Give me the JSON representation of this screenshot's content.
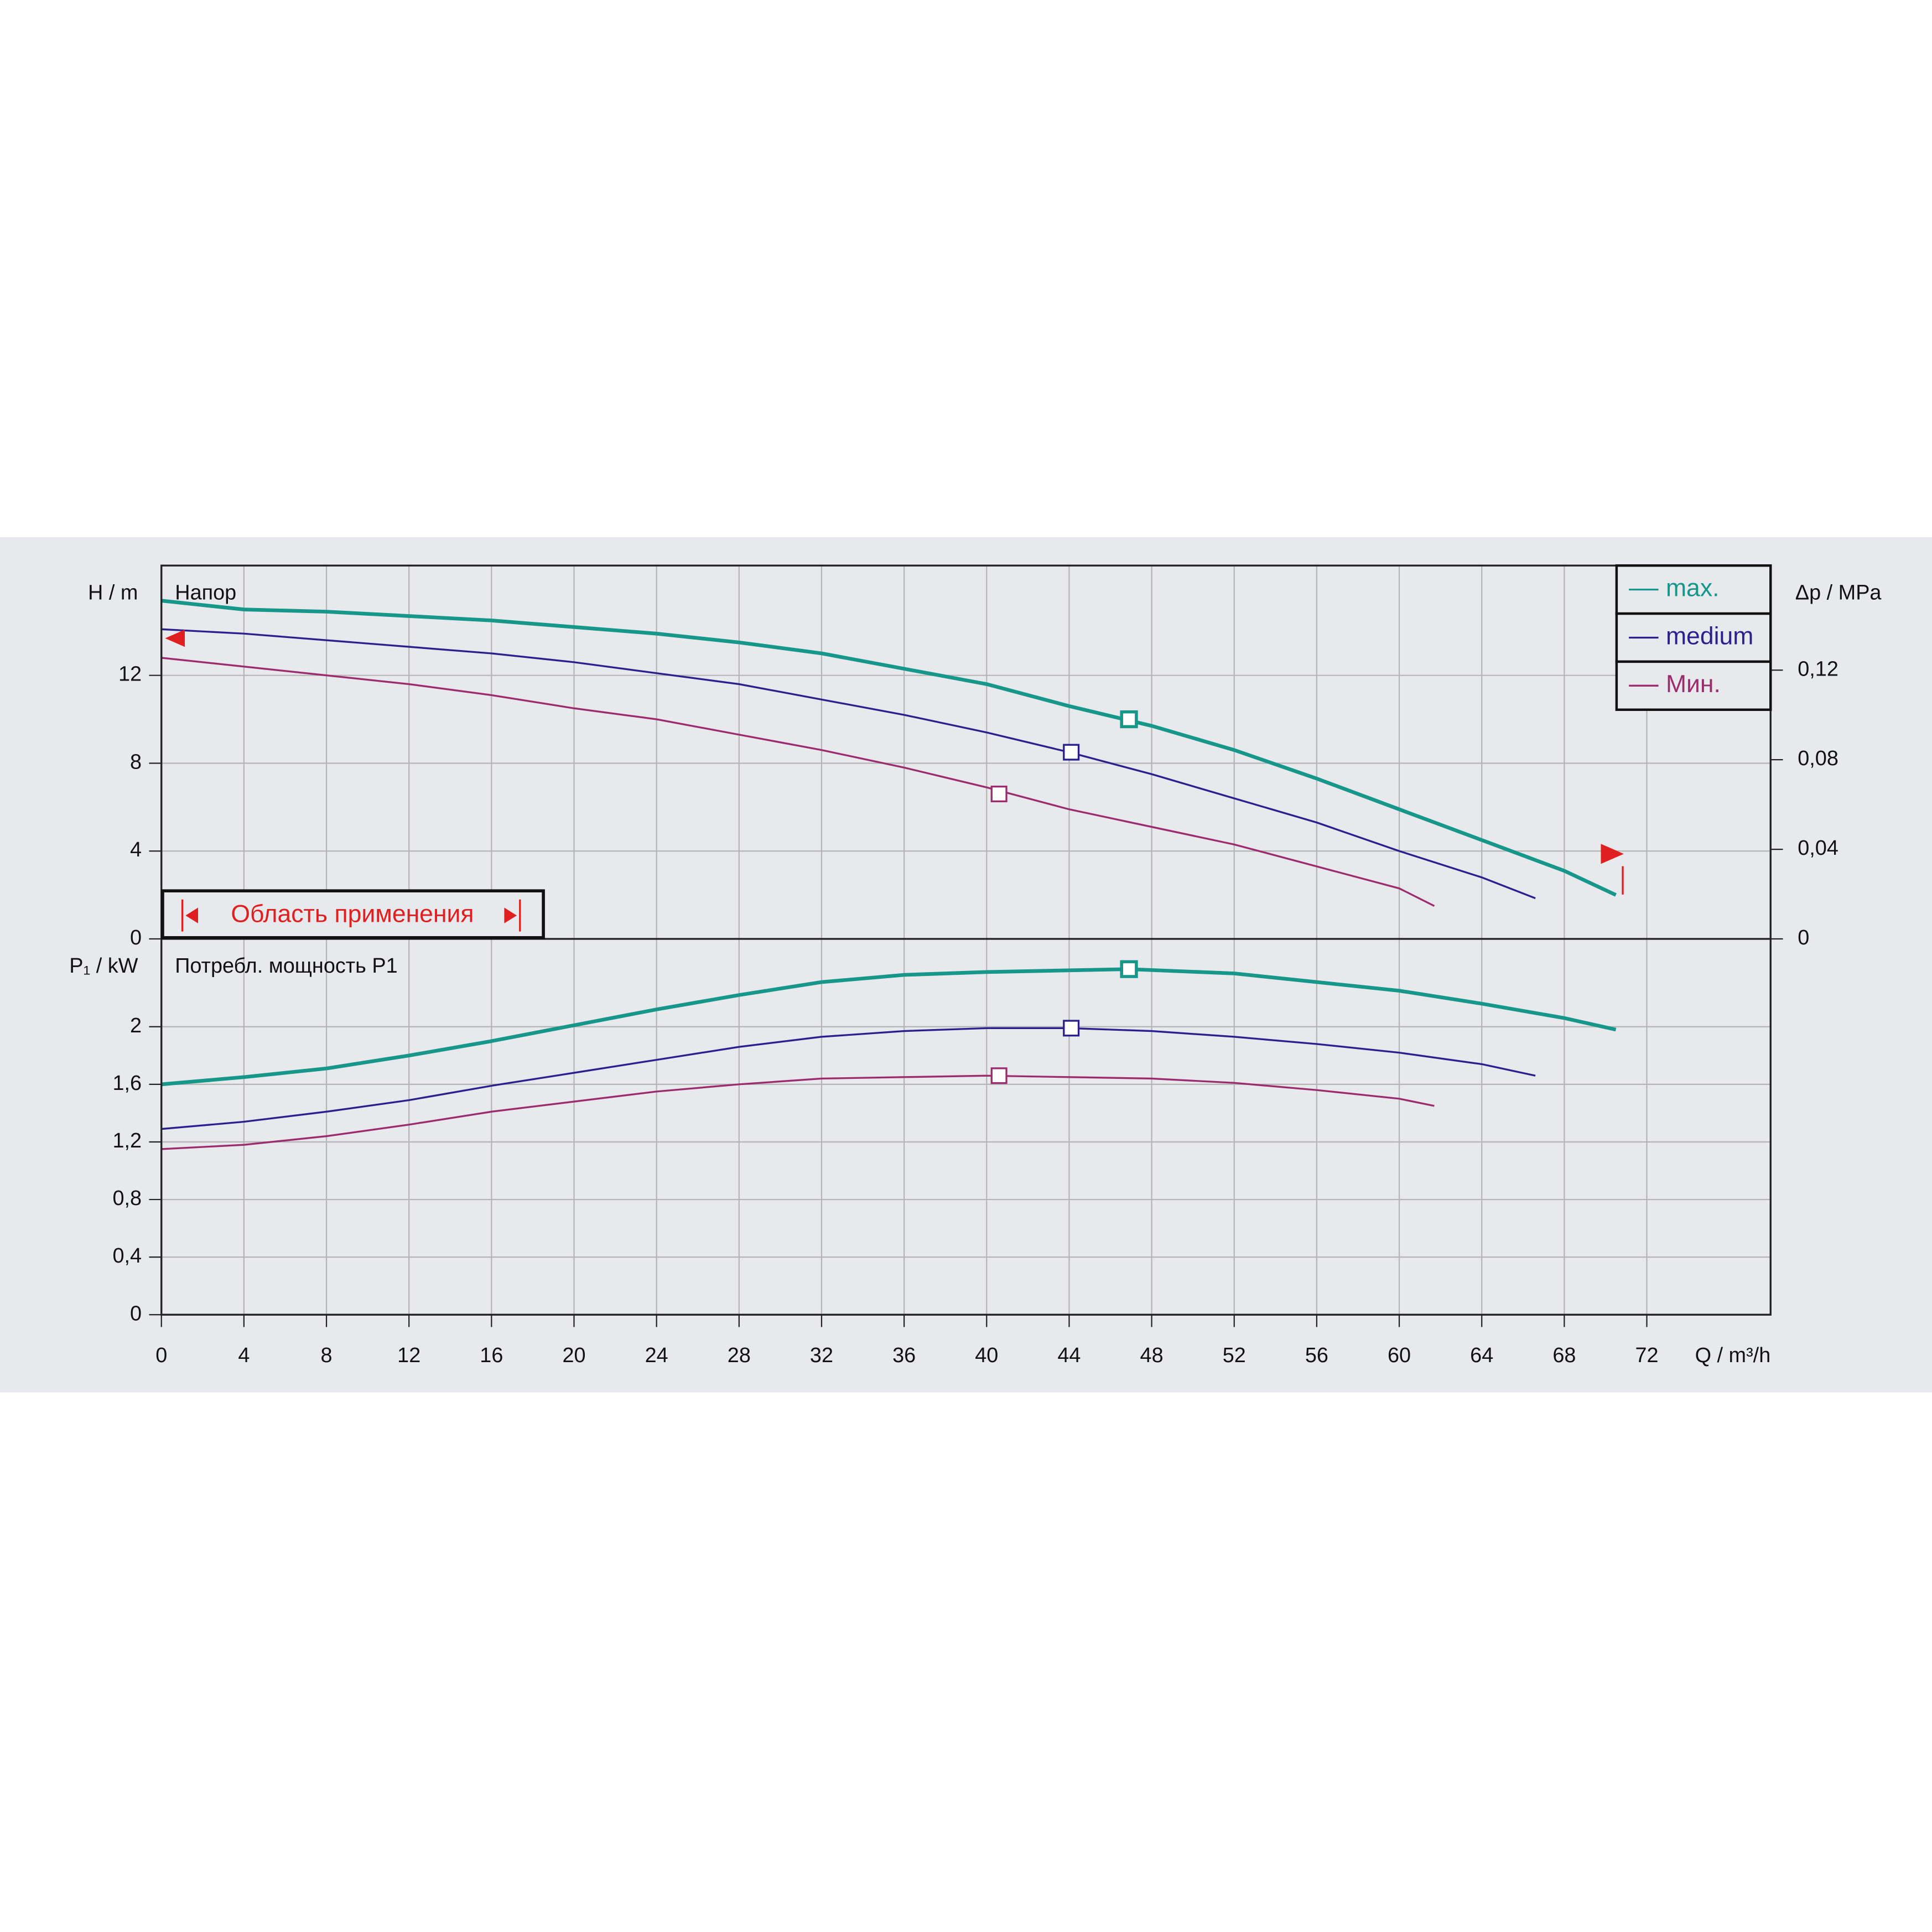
{
  "chart_data": [
    {
      "type": "line",
      "title": "Напор",
      "ylabel": "H / m",
      "y2label": "Δp / MPa",
      "application_range": "Область применения",
      "xlim": [
        0,
        78
      ],
      "ylim": [
        0,
        17
      ],
      "yticks": [
        0,
        4,
        8,
        12
      ],
      "y2lim": [
        0,
        0.1667
      ],
      "y2ticks": [
        0,
        {
          "value": 0.04,
          "label": "0,04"
        },
        {
          "value": 0.08,
          "label": "0,08"
        },
        {
          "value": 0.12,
          "label": "0,12"
        }
      ],
      "grid": true,
      "legend": "top-right",
      "series": [
        {
          "name": "max.",
          "color": "#17978a",
          "x": [
            0,
            4,
            8,
            12,
            16,
            20,
            24,
            28,
            32,
            36,
            40,
            44,
            48,
            52,
            56,
            60,
            64,
            68,
            70.5
          ],
          "values": [
            15.4,
            15.0,
            14.9,
            14.7,
            14.5,
            14.2,
            13.9,
            13.5,
            13.0,
            12.3,
            11.6,
            10.6,
            9.7,
            8.6,
            7.3,
            5.9,
            4.5,
            3.1,
            2.0
          ],
          "point": {
            "x": 46.9,
            "y": 10.0
          }
        },
        {
          "name": "medium",
          "color": "#2e1f8f",
          "x": [
            0,
            4,
            8,
            12,
            16,
            20,
            24,
            28,
            32,
            36,
            40,
            44,
            48,
            52,
            56,
            60,
            64,
            66.6
          ],
          "values": [
            14.1,
            13.9,
            13.6,
            13.3,
            13.0,
            12.6,
            12.1,
            11.6,
            10.9,
            10.2,
            9.4,
            8.5,
            7.5,
            6.4,
            5.3,
            4.0,
            2.8,
            1.85
          ],
          "point": {
            "x": 44.1,
            "y": 8.5
          }
        },
        {
          "name": "Мин.",
          "color": "#9b2d6e",
          "x": [
            0,
            4,
            8,
            12,
            16,
            20,
            24,
            28,
            32,
            36,
            40,
            44,
            48,
            52,
            56,
            60,
            61.7
          ],
          "values": [
            12.8,
            12.4,
            12.0,
            11.6,
            11.1,
            10.5,
            10.0,
            9.3,
            8.6,
            7.8,
            6.9,
            5.9,
            5.1,
            4.3,
            3.3,
            2.3,
            1.5
          ],
          "point": {
            "x": 40.6,
            "y": 6.6
          }
        }
      ]
    },
    {
      "type": "line",
      "title": "Потребл. мощность P1",
      "ylabel": "P₁ / kW",
      "xlabel": "Q / m³/h",
      "xlim": [
        0,
        78
      ],
      "xticks": [
        0,
        4,
        8,
        12,
        16,
        20,
        24,
        28,
        32,
        36,
        40,
        44,
        48,
        52,
        56,
        60,
        64,
        68,
        72
      ],
      "ylim": [
        0,
        2.61
      ],
      "yticks": [
        0,
        {
          "value": 0.4,
          "label": "0,4"
        },
        {
          "value": 0.8,
          "label": "0,8"
        },
        {
          "value": 1.2,
          "label": "1,2"
        },
        {
          "value": 1.6,
          "label": "1,6"
        },
        2
      ],
      "grid": true,
      "series": [
        {
          "name": "max.",
          "color": "#17978a",
          "x": [
            0,
            4,
            8,
            12,
            16,
            20,
            24,
            28,
            32,
            36,
            40,
            46.9,
            52,
            56,
            60,
            64,
            68,
            70.5
          ],
          "values": [
            1.6,
            1.65,
            1.71,
            1.8,
            1.9,
            2.01,
            2.12,
            2.22,
            2.31,
            2.36,
            2.38,
            2.4,
            2.37,
            2.31,
            2.25,
            2.16,
            2.06,
            1.98
          ],
          "point": {
            "x": 46.9,
            "y": 2.4
          }
        },
        {
          "name": "medium",
          "color": "#2e1f8f",
          "x": [
            0,
            4,
            8,
            12,
            16,
            20,
            24,
            28,
            32,
            36,
            40,
            44,
            48,
            52,
            56,
            60,
            64,
            66.6
          ],
          "values": [
            1.29,
            1.34,
            1.41,
            1.49,
            1.59,
            1.68,
            1.77,
            1.86,
            1.93,
            1.97,
            1.99,
            1.99,
            1.97,
            1.93,
            1.88,
            1.82,
            1.74,
            1.66
          ],
          "point": {
            "x": 44.1,
            "y": 1.99
          }
        },
        {
          "name": "Мин.",
          "color": "#9b2d6e",
          "x": [
            0,
            4,
            8,
            12,
            16,
            20,
            24,
            28,
            32,
            36,
            40,
            44,
            48,
            52,
            56,
            60,
            61.7
          ],
          "values": [
            1.15,
            1.18,
            1.24,
            1.32,
            1.41,
            1.48,
            1.55,
            1.6,
            1.64,
            1.65,
            1.66,
            1.65,
            1.64,
            1.61,
            1.56,
            1.5,
            1.45
          ],
          "point": {
            "x": 40.6,
            "y": 1.66
          }
        }
      ]
    }
  ]
}
